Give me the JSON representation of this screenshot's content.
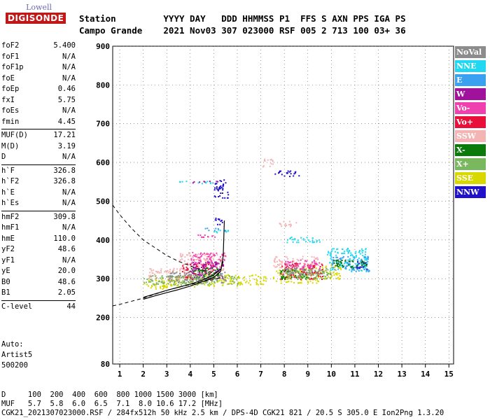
{
  "logo": {
    "line1": "Lowell",
    "line2": "DIGISONDE"
  },
  "header": {
    "line1": "Station         YYYY DAY   DDD HHMMSS P1  FFS S AXN PPS IGA PS",
    "line2": "Campo Grande    2021 Nov03 307 023000 RSF 005 2 713 100 03+ 36"
  },
  "params_group1": [
    {
      "name": "foF2",
      "value": "5.400"
    },
    {
      "name": "foF1",
      "value": "N/A"
    },
    {
      "name": "foF1p",
      "value": "N/A"
    },
    {
      "name": "foE",
      "value": "N/A"
    },
    {
      "name": "foEp",
      "value": "0.46"
    },
    {
      "name": "fxI",
      "value": "5.75"
    },
    {
      "name": "foEs",
      "value": "N/A"
    },
    {
      "name": "fmin",
      "value": "4.45"
    }
  ],
  "params_group2": [
    {
      "name": "MUF(D)",
      "value": "17.21"
    },
    {
      "name": "M(D)",
      "value": "3.19"
    },
    {
      "name": "D",
      "value": "N/A"
    }
  ],
  "params_group3": [
    {
      "name": "h`F",
      "value": "326.8"
    },
    {
      "name": "h`F2",
      "value": "326.8"
    },
    {
      "name": "h`E",
      "value": "N/A"
    },
    {
      "name": "h`Es",
      "value": "N/A"
    }
  ],
  "params_group4": [
    {
      "name": "hmF2",
      "value": "309.8"
    },
    {
      "name": "hmF1",
      "value": "N/A"
    },
    {
      "name": "hmE",
      "value": "110.0"
    },
    {
      "name": "yF2",
      "value": "48.6"
    },
    {
      "name": "yF1",
      "value": "N/A"
    },
    {
      "name": "yE",
      "value": "20.0"
    },
    {
      "name": "B0",
      "value": "48.6"
    },
    {
      "name": "B1",
      "value": "2.05"
    }
  ],
  "params_group5": [
    {
      "name": "C-level",
      "value": "44"
    }
  ],
  "auto": {
    "line1": "Auto:",
    "line2": "Artist5",
    "line3": "500200"
  },
  "legend": [
    {
      "label": "NoVal",
      "color": "#8c8c8c"
    },
    {
      "label": "NNE",
      "color": "#22d8f0"
    },
    {
      "label": "E",
      "color": "#3aa0f0"
    },
    {
      "label": "W",
      "color": "#a0119c"
    },
    {
      "label": "Vo-",
      "color": "#f040b0"
    },
    {
      "label": "Vo+",
      "color": "#e8103a"
    },
    {
      "label": "SSW",
      "color": "#f4b4b4"
    },
    {
      "label": "X-",
      "color": "#0a7a0a"
    },
    {
      "label": "X+",
      "color": "#7ab860"
    },
    {
      "label": "SSE",
      "color": "#d8d800"
    },
    {
      "label": "NNW",
      "color": "#2010c8"
    }
  ],
  "footer": {
    "line1": "D     100  200  400  600  800 1000 1500 3000 [km]",
    "line2": "MUF   5.7  5.8  6.0  6.5  7.1  8.0 10.6 17.2 [MHz]",
    "line3": "CGK21_2021307023000.RSF / 284fx512h 50 kHz 2.5 km / DPS-4D CGK21 821 / 20.5 S 305.0 E Ion2Png 1.3.20"
  },
  "chart_data": {
    "type": "scatter",
    "xlim": [
      0.7,
      15.2
    ],
    "ylim": [
      80,
      900
    ],
    "xticks": [
      "1",
      "2",
      "3",
      "4",
      "5",
      "6",
      "7",
      "8",
      "9",
      "10",
      "11",
      "12",
      "13",
      "14",
      "15"
    ],
    "yticks": [
      "80",
      "200",
      "300",
      "400",
      "500",
      "600",
      "700",
      "800",
      "900"
    ],
    "grid": true,
    "series": [
      {
        "name": "SSE",
        "color": "#d8d800",
        "clusters": [
          [
            2.0,
            3.2,
            275,
            300
          ],
          [
            3.0,
            4.5,
            280,
            310
          ],
          [
            4.5,
            6.0,
            282,
            312
          ],
          [
            6.0,
            7.2,
            285,
            312
          ],
          [
            7.5,
            9.5,
            290,
            330
          ],
          [
            9.5,
            10.4,
            300,
            340
          ]
        ]
      },
      {
        "name": "SSW",
        "color": "#f4b4b4",
        "clusters": [
          [
            2.2,
            4.0,
            300,
            330
          ],
          [
            3.5,
            5.5,
            320,
            370
          ],
          [
            7.5,
            9.5,
            330,
            360
          ],
          [
            7.0,
            7.5,
            590,
            610
          ],
          [
            7.7,
            8.5,
            435,
            450
          ]
        ]
      },
      {
        "name": "Vo+",
        "color": "#e8103a",
        "clusters": [
          [
            7.8,
            9.6,
            300,
            345
          ],
          [
            3.6,
            5.0,
            300,
            340
          ]
        ]
      },
      {
        "name": "Vo-",
        "color": "#f040b0",
        "clusters": [
          [
            4.0,
            5.5,
            330,
            370
          ],
          [
            8.0,
            9.5,
            320,
            350
          ],
          [
            4.3,
            5.1,
            408,
            418
          ]
        ]
      },
      {
        "name": "W",
        "color": "#a0119c",
        "clusters": [
          [
            4.0,
            5.4,
            300,
            345
          ],
          [
            4.0,
            5.2,
            548,
            553
          ]
        ]
      },
      {
        "name": "NNE",
        "color": "#22d8f0",
        "clusters": [
          [
            3.5,
            5.0,
            547,
            553
          ],
          [
            8.0,
            9.5,
            395,
            410
          ],
          [
            9.8,
            11.5,
            320,
            380
          ],
          [
            4.8,
            5.6,
            420,
            428
          ]
        ]
      },
      {
        "name": "E",
        "color": "#3aa0f0",
        "clusters": [
          [
            10.0,
            11.6,
            320,
            360
          ],
          [
            4.5,
            5.5,
            425,
            432
          ]
        ]
      },
      {
        "name": "NNW",
        "color": "#2010c8",
        "clusters": [
          [
            7.5,
            8.6,
            565,
            580
          ],
          [
            5.0,
            5.6,
            510,
            560
          ],
          [
            11.0,
            11.5,
            320,
            345
          ],
          [
            5.0,
            5.4,
            440,
            460
          ]
        ]
      },
      {
        "name": "X-",
        "color": "#0a7a0a",
        "clusters": [
          [
            4.0,
            5.2,
            300,
            330
          ],
          [
            7.8,
            9.0,
            300,
            325
          ],
          [
            10.0,
            11.5,
            330,
            350
          ]
        ]
      },
      {
        "name": "X+",
        "color": "#7ab860",
        "clusters": [
          [
            2.0,
            6.0,
            285,
            310
          ],
          [
            8.0,
            10.0,
            300,
            325
          ]
        ]
      },
      {
        "name": "NoVal",
        "color": "#8c8c8c",
        "clusters": [
          [
            3.0,
            5.5,
            290,
            320
          ],
          [
            8.0,
            10.0,
            310,
            330
          ]
        ]
      }
    ],
    "curves": {
      "dashed_profile": [
        [
          0.7,
          490
        ],
        [
          1.0,
          465
        ],
        [
          1.5,
          430
        ],
        [
          2.0,
          400
        ],
        [
          2.5,
          380
        ],
        [
          3.0,
          360
        ],
        [
          3.5,
          345
        ],
        [
          4.0,
          333
        ],
        [
          4.5,
          322
        ],
        [
          5.0,
          316
        ],
        [
          5.2,
          318
        ]
      ],
      "dashed_lower": [
        [
          0.7,
          230
        ],
        [
          1.2,
          237
        ],
        [
          2.0,
          250
        ],
        [
          2.5,
          260
        ],
        [
          3.0,
          270
        ],
        [
          3.5,
          278
        ],
        [
          4.0,
          285
        ],
        [
          4.5,
          292
        ],
        [
          5.0,
          298
        ],
        [
          5.4,
          305
        ]
      ],
      "solid_O": [
        [
          2.0,
          247
        ],
        [
          2.5,
          256
        ],
        [
          3.0,
          264
        ],
        [
          3.5,
          272
        ],
        [
          4.0,
          281
        ],
        [
          4.5,
          292
        ],
        [
          5.0,
          303
        ],
        [
          5.3,
          320
        ],
        [
          5.4,
          360
        ],
        [
          5.45,
          450
        ]
      ],
      "solid_X": [
        [
          2.0,
          252
        ],
        [
          3.0,
          270
        ],
        [
          4.0,
          286
        ],
        [
          4.5,
          296
        ],
        [
          5.0,
          310
        ],
        [
          5.3,
          325
        ],
        [
          5.4,
          345
        ]
      ]
    }
  }
}
